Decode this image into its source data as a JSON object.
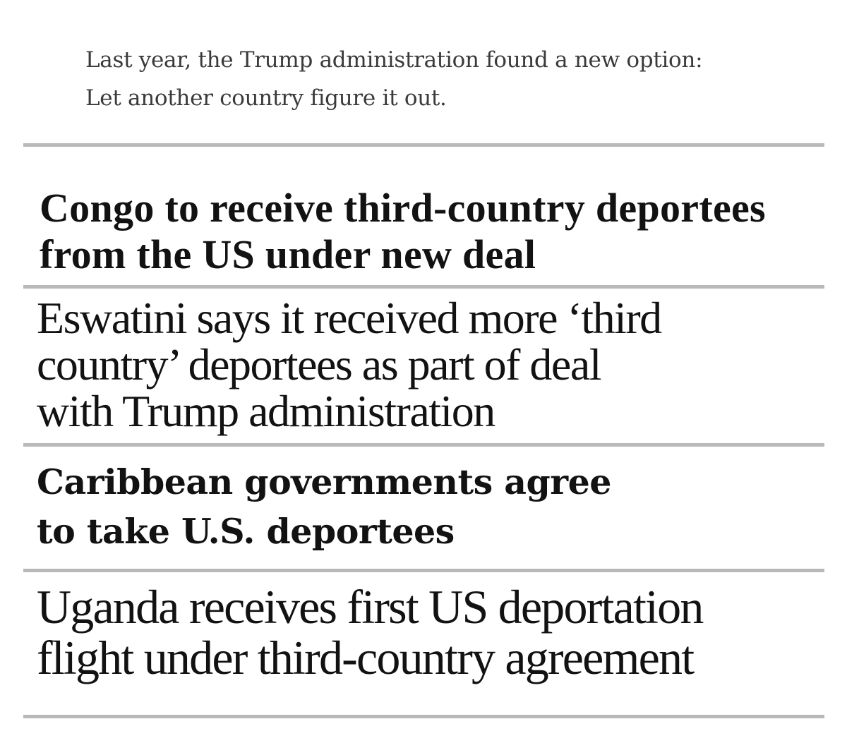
{
  "intro": {
    "line1": "Last year, the Trump administration found a new option:",
    "line2": "Let another country figure it out."
  },
  "headlines": [
    {
      "lines": [
        "Congo to receive third-country deportees",
        "from the US under new deal"
      ]
    },
    {
      "lines": [
        "Eswatini says it received more ‘third",
        "country’ deportees as part of deal",
        "with Trump administration"
      ]
    },
    {
      "lines": [
        "Caribbean governments agree",
        "to take U.S. deportees"
      ]
    },
    {
      "lines": [
        "Uganda receives first US deportation",
        "flight under third-country agreement"
      ]
    }
  ]
}
